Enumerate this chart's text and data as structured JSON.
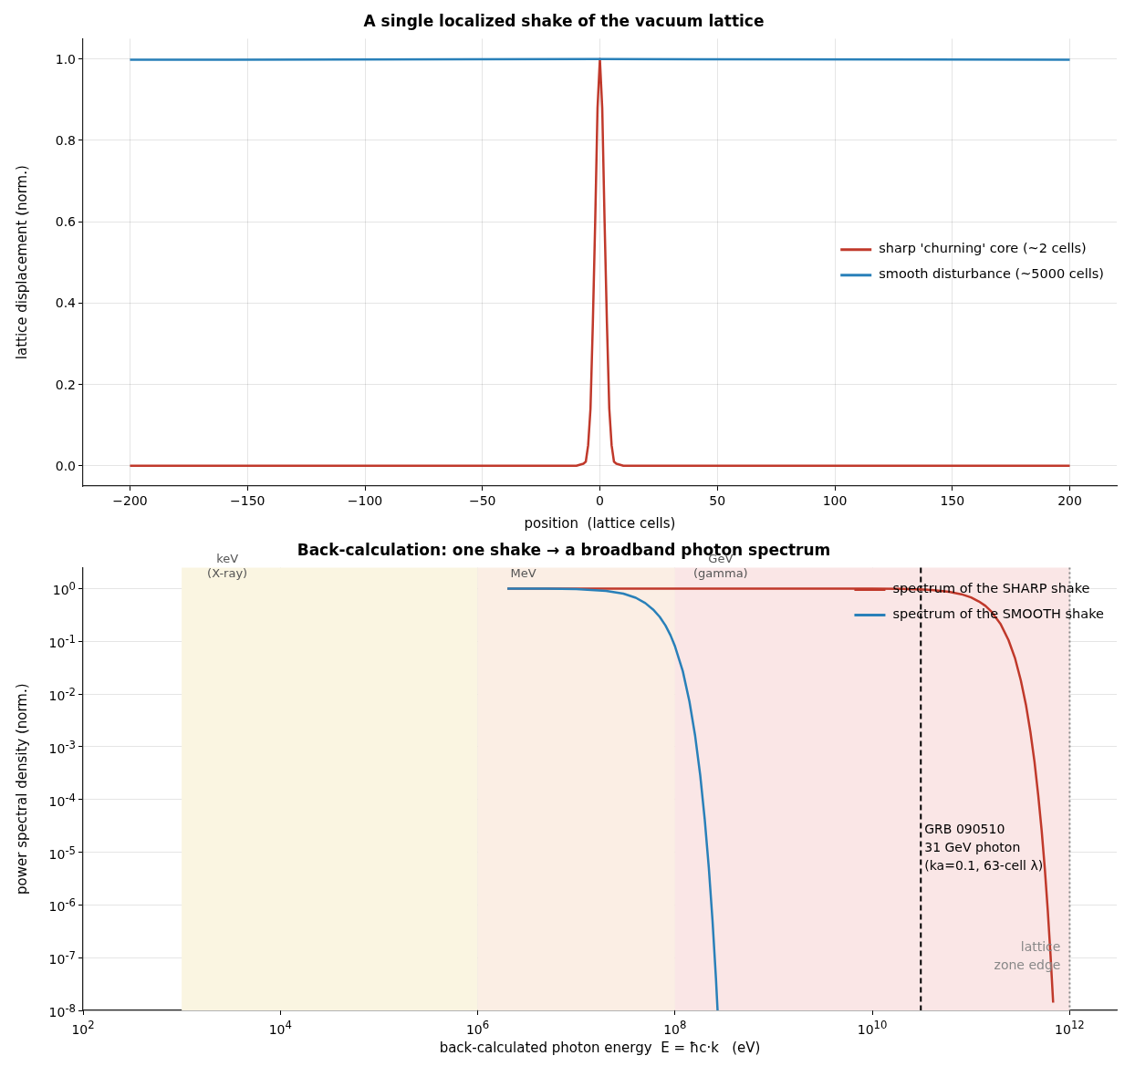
{
  "chart_data": [
    {
      "type": "line",
      "title": "A single localized shake of the vacuum lattice",
      "xlabel": "position  (lattice cells)",
      "ylabel": "lattice displacement (norm.)",
      "series": [
        {
          "name": "sharp 'churning' core (~2 cells)",
          "color": "#c0392b",
          "x": [
            -200,
            -10,
            -7,
            -6,
            -5,
            -4,
            -3,
            -2,
            -1,
            0,
            1,
            2,
            3,
            4,
            5,
            6,
            7,
            10,
            200
          ],
          "values": [
            0,
            0,
            0.005,
            0.01,
            0.05,
            0.14,
            0.35,
            0.6,
            0.88,
            1,
            0.88,
            0.6,
            0.35,
            0.14,
            0.05,
            0.01,
            0.005,
            0,
            0
          ]
        },
        {
          "name": "smooth disturbance (~5000 cells)",
          "color": "#2980b9",
          "x": [
            -200,
            0,
            200
          ],
          "values": [
            0.998,
            1,
            0.998
          ]
        }
      ],
      "xlim": [
        -220,
        220
      ],
      "xticks": [
        {
          "value": -200,
          "label": "−200"
        },
        {
          "value": -150,
          "label": "−150"
        },
        {
          "value": -100,
          "label": "−100"
        },
        {
          "value": -50,
          "label": "−50"
        },
        0,
        50,
        100,
        150,
        200
      ],
      "ylim": [
        -0.05,
        1.05
      ],
      "yticks": [
        {
          "value": 0,
          "label": "0.0"
        },
        0.2,
        0.4,
        0.6,
        0.8,
        {
          "value": 1,
          "label": "1.0"
        }
      ],
      "grid": true,
      "legend": "center right",
      "line_style": "solid",
      "marker": "none"
    },
    {
      "type": "line",
      "title": "Back-calculation: one shake → a broadband photon spectrum",
      "xlabel": "back-calculated photon energy  E = ħc·k   (eV)",
      "ylabel": "power spectral density (norm.)",
      "series": [
        {
          "name": "spectrum of the SHARP shake",
          "color": "#c0392b",
          "x": [
            2000000,
            100000000,
            1000000000,
            10000000000,
            20000000000,
            40000000000,
            60000000000,
            80000000000,
            100000000000,
            120000000000,
            140000000000,
            160000000000,
            200000000000,
            240000000000,
            280000000000,
            320000000000,
            360000000000,
            400000000000,
            440000000000,
            480000000000,
            520000000000,
            560000000000,
            600000000000,
            640000000000,
            680000000000
          ],
          "values": [
            1,
            1,
            1,
            0.996,
            0.985,
            0.94,
            0.87,
            0.78,
            0.68,
            0.57,
            0.47,
            0.37,
            0.21,
            0.105,
            0.047,
            0.018,
            0.0063,
            0.0019,
            0.00052,
            0.00012,
            2.6e-05,
            4.8e-06,
            7.8e-07,
            1.1e-07,
            1.4e-08
          ]
        },
        {
          "name": "spectrum of the SMOOTH shake",
          "color": "#2980b9",
          "x": [
            2000000,
            5000000,
            10000000,
            20000000,
            30000000,
            40000000,
            50000000,
            60000000,
            70000000,
            80000000,
            90000000,
            100000000,
            120000000,
            140000000,
            160000000,
            180000000,
            200000000,
            220000000,
            240000000,
            260000000,
            270000000
          ],
          "values": [
            1,
            0.994,
            0.975,
            0.9,
            0.8,
            0.67,
            0.53,
            0.4,
            0.29,
            0.2,
            0.13,
            0.08,
            0.027,
            0.0072,
            0.0016,
            0.00029,
            4.2e-05,
            5.1e-06,
            5e-07,
            4e-08,
            1e-08
          ]
        }
      ],
      "bands": [
        {
          "axis": "x",
          "from": 1000,
          "to": 1000000,
          "label": "keV\n(X-ray)",
          "color": "#faf5e1"
        },
        {
          "axis": "x",
          "from": 1000000,
          "to": 100000000,
          "label": "MeV",
          "color": "#fbeee4"
        },
        {
          "axis": "x",
          "from": 100000000,
          "to": 1000000000000,
          "label": "GeV\n(gamma)",
          "color": "#fae6e6"
        }
      ],
      "ref_lines": [
        {
          "axis": "x",
          "value": 31000000000,
          "color": "#000000",
          "line_style": "dashed"
        },
        {
          "axis": "x",
          "value": 1000000000000,
          "label": "lattice\nzone edge",
          "color": "#888888",
          "line_style": "dotted"
        }
      ],
      "annotations": [
        "GRB 090510\n31 GeV photon\n(ka=0.1, 63-cell λ)"
      ],
      "log": "xy",
      "xlim": [
        100,
        3000000000000
      ],
      "xticks": [
        {
          "value": 100,
          "label": "10$^{2}$"
        },
        {
          "value": 10000,
          "label": "10$^{4}$"
        },
        {
          "value": 1000000,
          "label": "10$^{6}$"
        },
        {
          "value": 100000000,
          "label": "10$^{8}$"
        },
        {
          "value": 10000000000,
          "label": "10$^{10}$"
        },
        {
          "value": 1000000000000,
          "label": "10$^{12}$"
        }
      ],
      "ylim": [
        1e-08,
        2.5
      ],
      "yticks": [
        {
          "value": 1e-08,
          "label": "10$^{-8}$"
        },
        {
          "value": 1e-07,
          "label": "10$^{-7}$"
        },
        {
          "value": 1e-06,
          "label": "10$^{-6}$"
        },
        {
          "value": 1e-05,
          "label": "10$^{-5}$"
        },
        {
          "value": 0.0001,
          "label": "10$^{-4}$"
        },
        {
          "value": 0.001,
          "label": "10$^{-3}$"
        },
        {
          "value": 0.01,
          "label": "10$^{-2}$"
        },
        {
          "value": 0.1,
          "label": "10$^{-1}$"
        },
        {
          "value": 1,
          "label": "10$^{0}$"
        }
      ],
      "grid": true,
      "legend": "top right",
      "line_style": "solid",
      "marker": "none"
    }
  ]
}
